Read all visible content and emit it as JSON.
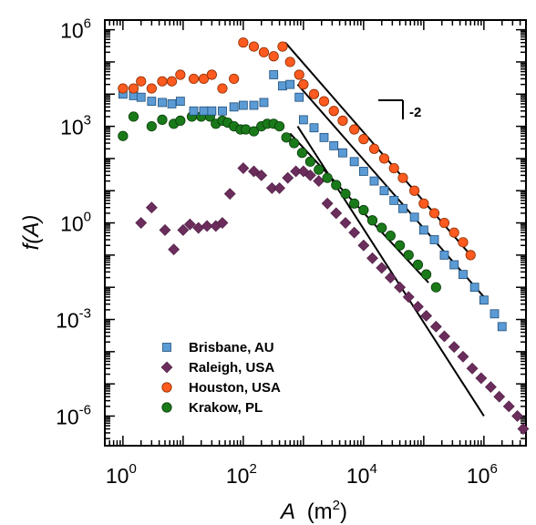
{
  "chart_data": {
    "type": "scatter",
    "x_scale": "log",
    "y_scale": "log",
    "xlabel": "A",
    "xlabel_unit": "(m",
    "xlabel_unit_sup": "2",
    "xlabel_unit_close": ")",
    "ylabel": "f(A)",
    "xlim": [
      0.5,
      5000000
    ],
    "ylim": [
      1.2e-07,
      2000000
    ],
    "x_ticks": [
      {
        "value": 1,
        "base": "10",
        "exp": "0"
      },
      {
        "value": 100,
        "base": "10",
        "exp": "2"
      },
      {
        "value": 10000,
        "base": "10",
        "exp": "4"
      },
      {
        "value": 1000000,
        "base": "10",
        "exp": "6"
      }
    ],
    "y_ticks": [
      {
        "value": 1e-06,
        "base": "10",
        "exp": "-6"
      },
      {
        "value": 0.001,
        "base": "10",
        "exp": "-3"
      },
      {
        "value": 1,
        "base": "10",
        "exp": "0"
      },
      {
        "value": 1000,
        "base": "10",
        "exp": "3"
      },
      {
        "value": 1000000,
        "base": "10",
        "exp": "6"
      }
    ],
    "slope_annotation": "-2",
    "legend_position": "bottom-left",
    "series": [
      {
        "name": "Brisbane, AU",
        "marker": "square",
        "color": "#5b9bd5",
        "stroke": "#1f4e79",
        "points": [
          [
            1.0,
            10000
          ],
          [
            1.5,
            9000
          ],
          [
            2.0,
            8000
          ],
          [
            3.0,
            6000
          ],
          [
            4.5,
            5500
          ],
          [
            6.5,
            5000
          ],
          [
            9.0,
            6000
          ],
          [
            15,
            3000
          ],
          [
            22,
            3000
          ],
          [
            30,
            3000
          ],
          [
            45,
            3000
          ],
          [
            70,
            4000
          ],
          [
            100,
            4500
          ],
          [
            150,
            4500
          ],
          [
            220,
            5500
          ],
          [
            320,
            40000
          ],
          [
            450,
            18000
          ],
          [
            600,
            20000
          ],
          [
            850,
            8000
          ],
          [
            1000,
            1600
          ],
          [
            1500,
            900
          ],
          [
            2200,
            450
          ],
          [
            3200,
            250
          ],
          [
            4500,
            150
          ],
          [
            7000,
            80
          ],
          [
            10000,
            40
          ],
          [
            15000,
            20
          ],
          [
            22000,
            10
          ],
          [
            32000,
            5
          ],
          [
            45000,
            2.8
          ],
          [
            70000,
            1.5
          ],
          [
            100000,
            0.6
          ],
          [
            150000,
            0.3
          ],
          [
            220000,
            0.1
          ],
          [
            320000,
            0.05
          ],
          [
            450000,
            0.025
          ],
          [
            700000,
            0.01
          ],
          [
            1000000,
            0.004
          ],
          [
            1500000,
            0.0015
          ],
          [
            2000000,
            0.0006
          ]
        ]
      },
      {
        "name": "Raleigh, USA",
        "marker": "diamond",
        "color": "#6b2d5c",
        "stroke": "#4a1d40",
        "points": [
          [
            2.0,
            1.0
          ],
          [
            3.0,
            3.0
          ],
          [
            5.0,
            0.6
          ],
          [
            7.0,
            0.15
          ],
          [
            10,
            0.6
          ],
          [
            13,
            0.9
          ],
          [
            18,
            0.7
          ],
          [
            25,
            0.8
          ],
          [
            35,
            0.8
          ],
          [
            45,
            1.0
          ],
          [
            60,
            8
          ],
          [
            100,
            50
          ],
          [
            150,
            40
          ],
          [
            200,
            30
          ],
          [
            300,
            12
          ],
          [
            400,
            12
          ],
          [
            550,
            25
          ],
          [
            750,
            40
          ],
          [
            1000,
            40
          ],
          [
            1300,
            30
          ],
          [
            1800,
            20
          ],
          [
            2500,
            4
          ],
          [
            3500,
            2
          ],
          [
            5000,
            1
          ],
          [
            7000,
            0.5
          ],
          [
            10000,
            0.2
          ],
          [
            14000,
            0.08
          ],
          [
            20000,
            0.04
          ],
          [
            28000,
            0.02
          ],
          [
            40000,
            0.01
          ],
          [
            56000,
            0.005
          ],
          [
            80000,
            0.0025
          ],
          [
            110000,
            0.0013
          ],
          [
            160000,
            0.0006
          ],
          [
            220000,
            0.0003
          ],
          [
            320000,
            0.00014
          ],
          [
            450000,
            7e-05
          ],
          [
            640000,
            3e-05
          ],
          [
            900000,
            1.5e-05
          ],
          [
            1300000,
            8e-06
          ],
          [
            1800000,
            4e-06
          ],
          [
            2600000,
            2e-06
          ],
          [
            3600000,
            1e-06
          ],
          [
            4500000,
            4e-07
          ]
        ]
      },
      {
        "name": "Houston, USA",
        "marker": "circle",
        "color": "#ff5a1f",
        "stroke": "#8a2e00",
        "points": [
          [
            1.0,
            15000
          ],
          [
            1.5,
            15000
          ],
          [
            2.0,
            25000
          ],
          [
            3.0,
            15000
          ],
          [
            4.5,
            25000
          ],
          [
            6.5,
            25000
          ],
          [
            9.0,
            40000
          ],
          [
            15,
            30000
          ],
          [
            22,
            30000
          ],
          [
            30,
            40000
          ],
          [
            45,
            15000
          ],
          [
            70,
            30000
          ],
          [
            100,
            400000
          ],
          [
            150,
            300000
          ],
          [
            220,
            200000
          ],
          [
            320,
            150000
          ],
          [
            450,
            300000
          ],
          [
            600,
            100000
          ],
          [
            850,
            40000
          ],
          [
            1000,
            20000
          ],
          [
            1500,
            10000
          ],
          [
            2200,
            6000
          ],
          [
            3200,
            3000
          ],
          [
            4500,
            1500
          ],
          [
            7000,
            800
          ],
          [
            10000,
            400
          ],
          [
            15000,
            200
          ],
          [
            22000,
            100
          ],
          [
            32000,
            50
          ],
          [
            45000,
            25
          ],
          [
            70000,
            10
          ],
          [
            100000,
            4
          ],
          [
            150000,
            2
          ],
          [
            220000,
            1
          ],
          [
            320000,
            0.5
          ],
          [
            450000,
            0.25
          ],
          [
            600000,
            0.1
          ]
        ]
      },
      {
        "name": "Krakow, PL",
        "marker": "circle",
        "color": "#1a7a1a",
        "stroke": "#0b3d0b",
        "points": [
          [
            1.0,
            500
          ],
          [
            1.5,
            2000
          ],
          [
            3.0,
            1000
          ],
          [
            4.5,
            1600
          ],
          [
            7.0,
            1200
          ],
          [
            9.0,
            1500
          ],
          [
            14,
            2000
          ],
          [
            20,
            2000
          ],
          [
            28,
            2000
          ],
          [
            35,
            1200
          ],
          [
            45,
            1500
          ],
          [
            55,
            1300
          ],
          [
            70,
            1000
          ],
          [
            90,
            800
          ],
          [
            110,
            800
          ],
          [
            150,
            700
          ],
          [
            200,
            1000
          ],
          [
            250,
            1200
          ],
          [
            320,
            1200
          ],
          [
            400,
            1000
          ],
          [
            520,
            450
          ],
          [
            700,
            300
          ],
          [
            950,
            150
          ],
          [
            1300,
            80
          ],
          [
            1800,
            45
          ],
          [
            2500,
            25
          ],
          [
            3500,
            15
          ],
          [
            5000,
            8
          ],
          [
            7000,
            4
          ],
          [
            10000,
            2.5
          ],
          [
            14000,
            1.2
          ],
          [
            20000,
            0.7
          ],
          [
            28000,
            0.4
          ],
          [
            40000,
            0.2
          ],
          [
            56000,
            0.1
          ],
          [
            80000,
            0.05
          ],
          [
            110000,
            0.025
          ],
          [
            160000,
            0.01
          ]
        ]
      }
    ],
    "fit_lines": [
      {
        "color": "#000000",
        "from": [
          800,
          1000
        ],
        "to": [
          1000000,
          1e-06
        ]
      },
      {
        "color": "#000000",
        "from": [
          500,
          400000
        ],
        "to": [
          600000,
          0.1
        ]
      },
      {
        "color": "#000000",
        "from": [
          800,
          20000
        ],
        "to": [
          1000000,
          0.005
        ]
      },
      {
        "color": "#000000",
        "from": [
          600,
          600
        ],
        "to": [
          120000,
          0.014
        ]
      }
    ]
  }
}
